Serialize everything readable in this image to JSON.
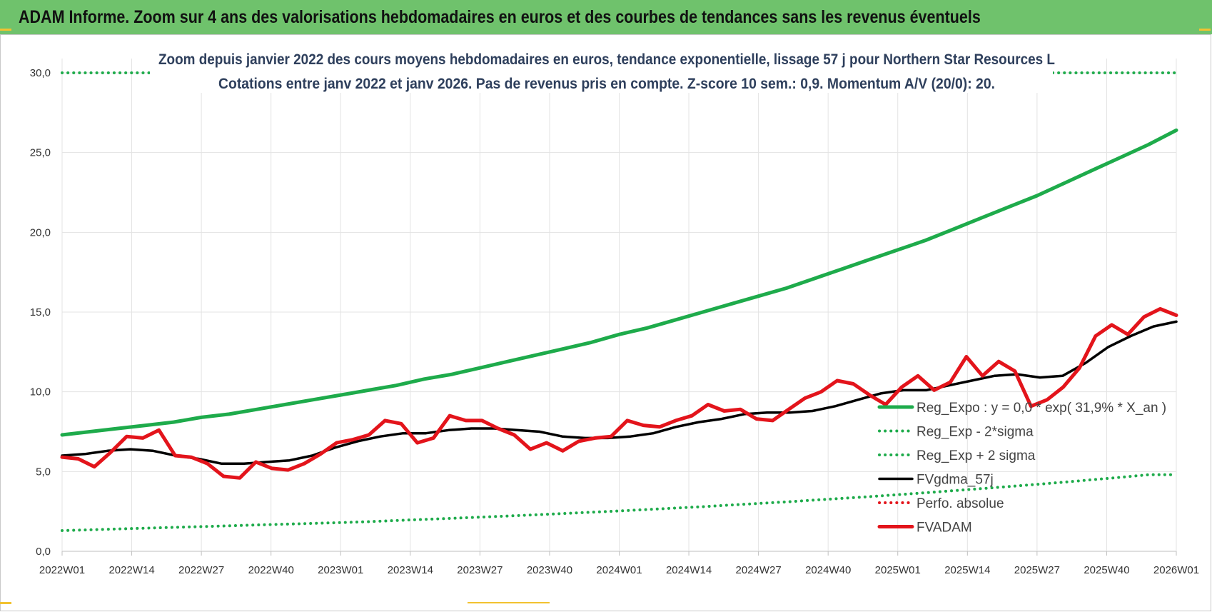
{
  "banner": {
    "title": "ADAM Informe. Zoom sur 4 ans des valorisations hebdomadaires en euros et des courbes de tendances sans les revenus éventuels"
  },
  "chart_data": {
    "type": "line",
    "title": "Zoom depuis janvier 2022 des cours moyens hebdomadaires en euros, tendance exponentielle, lissage 57 j pour Northern Star Resources L",
    "subtitle": "Cotations entre janv 2022 et janv 2026. Pas de revenus pris en compte. Z-score 10 sem.: 0,9. Momentum A/V (20/0): 20.",
    "x_tick_labels": [
      "2022W01",
      "2022W14",
      "2022W27",
      "2022W40",
      "2023W01",
      "2023W14",
      "2023W27",
      "2023W40",
      "2024W01",
      "2024W14",
      "2024W27",
      "2024W40",
      "2025W01",
      "2025W14",
      "2025W27",
      "2025W40",
      "2026W01"
    ],
    "y_tick_labels": [
      "0,0",
      "5,0",
      "10,0",
      "15,0",
      "20,0",
      "25,0",
      "30,0"
    ],
    "ylim": [
      0,
      30
    ],
    "grid": true,
    "legend_position": "bottom-right",
    "series": [
      {
        "name": "Reg_Expo : y = 0,0 * exp( 31,9% *  X_an )",
        "style": "solid-thick",
        "color": "#1eab4b",
        "values": [
          7.3,
          7.5,
          7.7,
          7.9,
          8.1,
          8.4,
          8.6,
          8.9,
          9.2,
          9.5,
          9.8,
          10.1,
          10.4,
          10.8,
          11.1,
          11.5,
          11.9,
          12.3,
          12.7,
          13.1,
          13.6,
          14.0,
          14.5,
          15.0,
          15.5,
          16.0,
          16.5,
          17.1,
          17.7,
          18.3,
          18.9,
          19.5,
          20.2,
          20.9,
          21.6,
          22.3,
          23.1,
          23.9,
          24.7,
          25.5,
          26.4
        ]
      },
      {
        "name": "Reg_Exp - 2*sigma",
        "style": "dotted",
        "color": "#1eab4b",
        "values": [
          1.3,
          1.35,
          1.4,
          1.45,
          1.5,
          1.55,
          1.6,
          1.65,
          1.7,
          1.75,
          1.8,
          1.86,
          1.93,
          2.0,
          2.07,
          2.14,
          2.21,
          2.29,
          2.37,
          2.45,
          2.53,
          2.62,
          2.71,
          2.8,
          2.9,
          3.0,
          3.1,
          3.21,
          3.32,
          3.43,
          3.55,
          3.67,
          3.8,
          3.93,
          4.06,
          4.2,
          4.34,
          4.49,
          4.64,
          4.8,
          4.8
        ]
      },
      {
        "name": "Reg_Exp + 2 sigma",
        "style": "dotted",
        "color": "#1eab4b",
        "values": [
          30,
          30
        ]
      },
      {
        "name": "FVgdma_57j",
        "style": "solid",
        "color": "#000000",
        "values": [
          6.0,
          6.1,
          6.3,
          6.4,
          6.3,
          6.0,
          5.8,
          5.5,
          5.5,
          5.6,
          5.7,
          6.0,
          6.5,
          6.9,
          7.2,
          7.4,
          7.4,
          7.6,
          7.7,
          7.7,
          7.6,
          7.5,
          7.2,
          7.1,
          7.1,
          7.2,
          7.4,
          7.8,
          8.1,
          8.3,
          8.6,
          8.7,
          8.7,
          8.8,
          9.1,
          9.5,
          9.9,
          10.1,
          10.1,
          10.4,
          10.7,
          11.0,
          11.1,
          10.9,
          11.0,
          11.8,
          12.8,
          13.5,
          14.1,
          14.4
        ]
      },
      {
        "name": "Perfo. absolue",
        "style": "dotted",
        "color": "#e3141b",
        "values": []
      },
      {
        "name": "FVADAM",
        "style": "solid-thick",
        "color": "#e3141b",
        "values": [
          5.9,
          5.8,
          5.3,
          6.2,
          7.2,
          7.1,
          7.6,
          6.0,
          5.9,
          5.5,
          4.7,
          4.6,
          5.6,
          5.2,
          5.1,
          5.5,
          6.1,
          6.8,
          7.0,
          7.3,
          8.2,
          8.0,
          6.8,
          7.1,
          8.5,
          8.2,
          8.2,
          7.7,
          7.3,
          6.4,
          6.8,
          6.3,
          6.9,
          7.1,
          7.2,
          8.2,
          7.9,
          7.8,
          8.2,
          8.5,
          9.2,
          8.8,
          8.9,
          8.3,
          8.2,
          8.9,
          9.6,
          10.0,
          10.7,
          10.5,
          9.8,
          9.2,
          10.3,
          11.0,
          10.1,
          10.6,
          12.2,
          11.0,
          11.9,
          11.3,
          9.1,
          9.5,
          10.3,
          11.5,
          13.5,
          14.2,
          13.6,
          14.7,
          15.2,
          14.8
        ]
      }
    ]
  }
}
